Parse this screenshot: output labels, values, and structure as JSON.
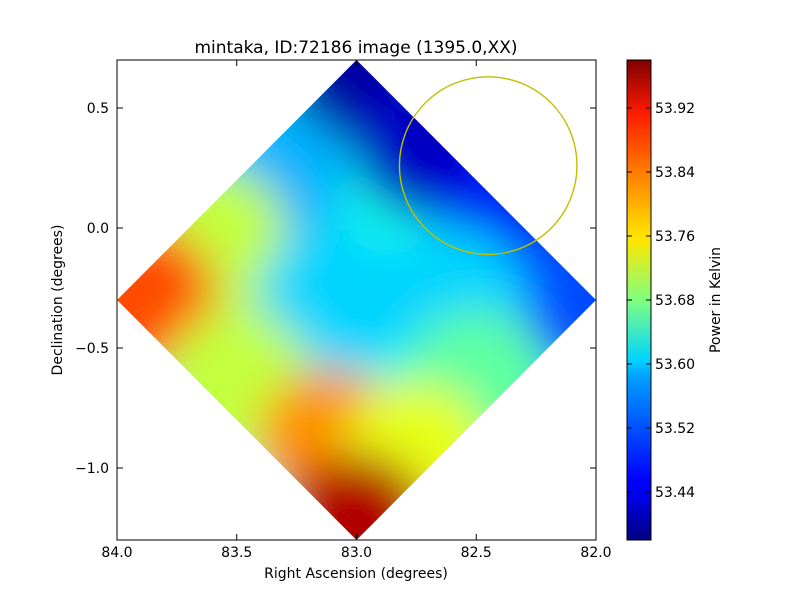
{
  "chart_data": {
    "type": "heatmap",
    "title": "mintaka, ID:72186 image (1395.0,XX)",
    "xlabel": "Right Ascension (degrees)",
    "ylabel": "Declination (degrees)",
    "xlim": [
      84.0,
      82.0
    ],
    "ylim": [
      -1.3,
      0.7
    ],
    "x_ticks": [
      84.0,
      83.5,
      83.0,
      82.5,
      82.0
    ],
    "x_tick_labels": [
      "84.0",
      "83.5",
      "83.0",
      "82.5",
      "82.0"
    ],
    "y_ticks": [
      0.5,
      0.0,
      -0.5,
      -1.0
    ],
    "y_tick_labels": [
      "0.5",
      "0.0",
      "−0.5",
      "−1.0"
    ],
    "colorbar": {
      "label": "Power in Kelvin",
      "colormap": "jet",
      "range": [
        53.38,
        53.98
      ],
      "ticks": [
        53.44,
        53.52,
        53.6,
        53.68,
        53.76,
        53.84,
        53.92
      ],
      "tick_labels": [
        "53.44",
        "53.52",
        "53.60",
        "53.68",
        "53.76",
        "53.84",
        "53.92"
      ]
    },
    "map_region": {
      "shape": "diamond",
      "center": [
        83.0,
        -0.3
      ],
      "half_width_ra": 1.0,
      "half_height_dec": 1.0
    },
    "value_field_samples": [
      {
        "ra": 83.0,
        "dec": 0.65,
        "value": 53.4
      },
      {
        "ra": 82.7,
        "dec": 0.35,
        "value": 53.42
      },
      {
        "ra": 82.35,
        "dec": 0.0,
        "value": 53.45
      },
      {
        "ra": 82.05,
        "dec": -0.3,
        "value": 53.5
      },
      {
        "ra": 83.35,
        "dec": 0.2,
        "value": 53.56
      },
      {
        "ra": 83.6,
        "dec": -0.05,
        "value": 53.72
      },
      {
        "ra": 83.9,
        "dec": -0.3,
        "value": 53.86
      },
      {
        "ra": 83.1,
        "dec": -0.3,
        "value": 53.58
      },
      {
        "ra": 82.6,
        "dec": -0.3,
        "value": 53.58
      },
      {
        "ra": 83.5,
        "dec": -0.65,
        "value": 53.72
      },
      {
        "ra": 82.5,
        "dec": -0.65,
        "value": 53.66
      },
      {
        "ra": 83.1,
        "dec": -0.9,
        "value": 53.82
      },
      {
        "ra": 82.75,
        "dec": -0.95,
        "value": 53.74
      },
      {
        "ra": 83.0,
        "dec": -1.25,
        "value": 53.95
      }
    ],
    "annotation": {
      "type": "circle",
      "center_ra": 82.45,
      "center_dec": 0.26,
      "radius_deg": 0.37,
      "color": "#bfbf00"
    },
    "grid": false,
    "legend": "none"
  }
}
